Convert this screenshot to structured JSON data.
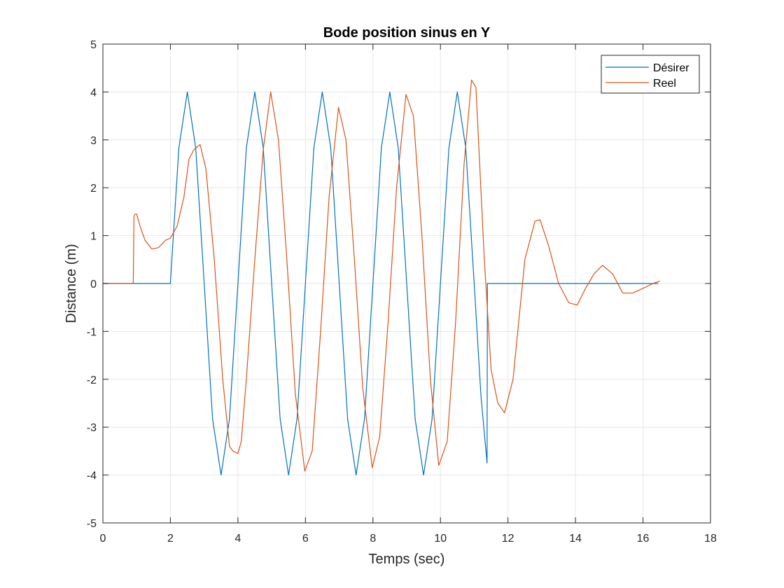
{
  "chart_data": {
    "type": "line",
    "title": "Bode position sinus en Y",
    "xlabel": "Temps (sec)",
    "ylabel": "Distance (m)",
    "xlim": [
      0,
      18
    ],
    "ylim": [
      -5,
      5
    ],
    "xticks": [
      "0",
      "2",
      "4",
      "6",
      "8",
      "10",
      "12",
      "14",
      "16",
      "18"
    ],
    "yticks": [
      "-5",
      "-4",
      "-3",
      "-2",
      "-1",
      "0",
      "1",
      "2",
      "3",
      "4",
      "5"
    ],
    "grid": true,
    "legend": "top-right",
    "series": [
      {
        "name": "Désirer",
        "color": "#0072bd",
        "x": [
          0,
          0.9,
          1.8,
          2.0,
          2.25,
          2.5,
          2.75,
          3.0,
          3.25,
          3.5,
          3.75,
          4.0,
          4.25,
          4.5,
          4.75,
          5.0,
          5.25,
          5.5,
          5.75,
          6.0,
          6.25,
          6.5,
          6.75,
          7.0,
          7.25,
          7.5,
          7.75,
          8.0,
          8.25,
          8.5,
          8.75,
          9.0,
          9.25,
          9.5,
          9.75,
          10.0,
          10.25,
          10.5,
          10.75,
          11.0,
          11.2,
          11.38,
          11.39,
          12.0,
          13.0,
          14.0,
          15.0,
          16.0,
          16.45
        ],
        "y": [
          0,
          0,
          0,
          0,
          2.83,
          4.0,
          2.83,
          0,
          -2.83,
          -4.0,
          -2.83,
          0,
          2.83,
          4.0,
          2.83,
          0,
          -2.83,
          -4.0,
          -2.83,
          0,
          2.83,
          4.0,
          2.83,
          0,
          -2.83,
          -4.0,
          -2.83,
          0,
          2.83,
          4.0,
          2.83,
          0,
          -2.83,
          -4.0,
          -2.83,
          0,
          2.83,
          4.0,
          2.83,
          0,
          -2.35,
          -3.75,
          0,
          0,
          0,
          0,
          0,
          0,
          0
        ]
      },
      {
        "name": "Reel",
        "color": "#d95319",
        "x": [
          0,
          0.9,
          0.92,
          0.95,
          1.0,
          1.1,
          1.25,
          1.45,
          1.65,
          1.85,
          2.0,
          2.2,
          2.4,
          2.55,
          2.7,
          2.88,
          3.05,
          3.3,
          3.55,
          3.75,
          3.85,
          4.0,
          4.1,
          4.25,
          4.5,
          4.75,
          4.97,
          5.2,
          5.45,
          5.7,
          5.98,
          6.2,
          6.45,
          6.7,
          6.98,
          7.2,
          7.45,
          7.7,
          7.98,
          8.2,
          8.45,
          8.7,
          8.98,
          9.2,
          9.45,
          9.7,
          9.95,
          10.2,
          10.45,
          10.7,
          10.92,
          11.05,
          11.3,
          11.5,
          11.7,
          11.9,
          12.15,
          12.5,
          12.8,
          12.95,
          13.2,
          13.5,
          13.8,
          14.05,
          14.3,
          14.55,
          14.8,
          15.1,
          15.4,
          15.7,
          16.0,
          16.3,
          16.5
        ],
        "y": [
          0,
          0,
          1.4,
          1.45,
          1.45,
          1.2,
          0.9,
          0.72,
          0.75,
          0.9,
          0.95,
          1.2,
          1.8,
          2.6,
          2.8,
          2.9,
          2.4,
          0.5,
          -2.0,
          -3.4,
          -3.5,
          -3.55,
          -3.3,
          -2.0,
          0.5,
          2.8,
          4.0,
          3.0,
          0.5,
          -2.3,
          -3.92,
          -3.5,
          -1.0,
          1.8,
          3.68,
          3.0,
          0.5,
          -2.2,
          -3.85,
          -3.2,
          -0.8,
          2.0,
          3.95,
          3.5,
          1.0,
          -2.0,
          -3.8,
          -3.3,
          -0.8,
          2.5,
          4.25,
          4.1,
          0.5,
          -1.8,
          -2.5,
          -2.7,
          -2.0,
          0.5,
          1.3,
          1.33,
          0.8,
          0.0,
          -0.4,
          -0.45,
          -0.1,
          0.2,
          0.38,
          0.2,
          -0.2,
          -0.2,
          -0.1,
          0.0,
          0.05
        ]
      }
    ]
  }
}
